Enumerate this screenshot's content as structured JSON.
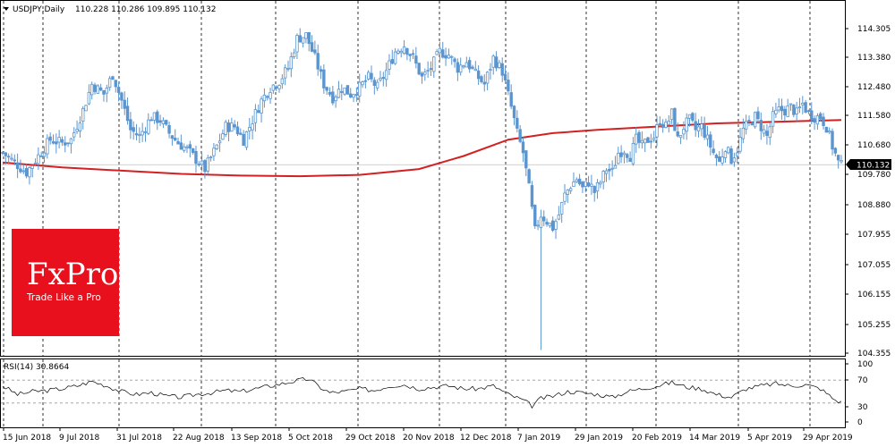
{
  "chart_data": [
    {
      "type": "candlestick",
      "symbol": "USDJPY,Daily",
      "ohlc_header": "110.228 110.286 109.895 110.132",
      "last_price": "110.132",
      "y_ticks": [
        "114.305",
        "113.380",
        "112.480",
        "111.580",
        "110.680",
        "109.780",
        "108.880",
        "107.955",
        "107.055",
        "106.155",
        "105.255",
        "104.355"
      ],
      "x_ticks": [
        "15 Jun 2018",
        "9 Jul 2018",
        "31 Jul 2018",
        "22 Aug 2018",
        "13 Sep 2018",
        "5 Oct 2018",
        "29 Oct 2018",
        "20 Nov 2018",
        "12 Dec 2018",
        "7 Jan 2019",
        "29 Jan 2019",
        "20 Feb 2019",
        "14 Mar 2019",
        "5 Apr 2019",
        "29 Apr 2019"
      ],
      "ylim": [
        104.1,
        114.5
      ],
      "grid": "vertical-dashed",
      "close_path": [
        [
          0,
          110.5
        ],
        [
          4,
          110.2
        ],
        [
          8,
          109.9
        ],
        [
          12,
          110.4
        ],
        [
          16,
          110.9
        ],
        [
          20,
          110.8
        ],
        [
          23,
          110.9
        ],
        [
          27,
          111.8
        ],
        [
          30,
          112.6
        ],
        [
          34,
          112.3
        ],
        [
          37,
          112.9
        ],
        [
          40,
          112.1
        ],
        [
          43,
          111.2
        ],
        [
          46,
          111.0
        ],
        [
          50,
          111.6
        ],
        [
          53,
          111.5
        ],
        [
          56,
          111.1
        ],
        [
          59,
          110.8
        ],
        [
          62,
          110.6
        ],
        [
          65,
          110.3
        ],
        [
          68,
          110.0
        ],
        [
          72,
          110.7
        ],
        [
          75,
          111.3
        ],
        [
          78,
          111.3
        ],
        [
          81,
          110.9
        ],
        [
          84,
          111.5
        ],
        [
          87,
          112.1
        ],
        [
          90,
          112.5
        ],
        [
          93,
          112.7
        ],
        [
          96,
          113.1
        ],
        [
          99,
          114.0
        ],
        [
          102,
          114.1
        ],
        [
          105,
          113.4
        ],
        [
          108,
          112.6
        ],
        [
          111,
          112.2
        ],
        [
          114,
          112.5
        ],
        [
          117,
          112.3
        ],
        [
          120,
          112.5
        ],
        [
          123,
          112.8
        ],
        [
          126,
          112.5
        ],
        [
          129,
          113.0
        ],
        [
          132,
          113.6
        ],
        [
          135,
          113.8
        ],
        [
          138,
          113.4
        ],
        [
          141,
          112.8
        ],
        [
          144,
          113.1
        ],
        [
          147,
          113.6
        ],
        [
          150,
          113.5
        ],
        [
          153,
          113.1
        ],
        [
          156,
          113.3
        ],
        [
          159,
          112.9
        ],
        [
          162,
          112.6
        ],
        [
          165,
          113.4
        ],
        [
          168,
          113.0
        ],
        [
          171,
          111.9
        ],
        [
          173,
          111.1
        ],
        [
          175,
          110.5
        ],
        [
          177,
          109.4
        ],
        [
          179,
          108.1
        ],
        [
          181,
          108.6
        ],
        [
          183,
          108.4
        ],
        [
          185,
          108.2
        ],
        [
          187,
          108.6
        ],
        [
          189,
          109.2
        ],
        [
          191,
          109.5
        ],
        [
          193,
          109.7
        ],
        [
          195,
          109.4
        ],
        [
          197,
          109.6
        ],
        [
          199,
          109.3
        ],
        [
          201,
          109.6
        ],
        [
          203,
          110.0
        ],
        [
          205,
          109.9
        ],
        [
          207,
          110.5
        ],
        [
          209,
          110.6
        ],
        [
          211,
          110.4
        ],
        [
          213,
          110.9
        ],
        [
          215,
          110.7
        ],
        [
          217,
          110.9
        ],
        [
          219,
          111.0
        ],
        [
          221,
          111.5
        ],
        [
          223,
          111.3
        ],
        [
          225,
          111.7
        ],
        [
          227,
          110.9
        ],
        [
          229,
          111.3
        ],
        [
          231,
          111.5
        ],
        [
          233,
          111.2
        ],
        [
          235,
          111.3
        ],
        [
          237,
          110.9
        ],
        [
          239,
          110.5
        ],
        [
          241,
          110.2
        ],
        [
          243,
          110.7
        ],
        [
          245,
          110.3
        ],
        [
          247,
          110.6
        ],
        [
          249,
          111.2
        ],
        [
          251,
          111.4
        ],
        [
          253,
          111.6
        ],
        [
          255,
          111.3
        ],
        [
          257,
          111.0
        ],
        [
          259,
          111.6
        ],
        [
          261,
          111.8
        ],
        [
          263,
          111.8
        ],
        [
          265,
          111.9
        ],
        [
          267,
          111.7
        ],
        [
          269,
          112.0
        ],
        [
          271,
          111.7
        ],
        [
          273,
          111.6
        ],
        [
          275,
          111.6
        ],
        [
          277,
          111.3
        ],
        [
          279,
          110.7
        ],
        [
          281,
          110.2
        ],
        [
          282,
          110.1
        ]
      ],
      "ma_path": [
        [
          0,
          110.2
        ],
        [
          20,
          110.05
        ],
        [
          40,
          109.95
        ],
        [
          60,
          109.85
        ],
        [
          80,
          109.8
        ],
        [
          100,
          109.78
        ],
        [
          120,
          109.82
        ],
        [
          140,
          110.0
        ],
        [
          155,
          110.4
        ],
        [
          170,
          110.9
        ],
        [
          185,
          111.1
        ],
        [
          200,
          111.2
        ],
        [
          220,
          111.3
        ],
        [
          240,
          111.4
        ],
        [
          260,
          111.45
        ],
        [
          282,
          111.5
        ]
      ],
      "ma_color": "#d32020",
      "candle_color": "#5b95cf"
    },
    {
      "type": "line",
      "indicator_label": "RSI(14) 30.8664",
      "y_ticks": [
        "100",
        "70",
        "30",
        "0"
      ],
      "ylim": [
        0,
        100
      ],
      "levels": [
        30,
        70
      ],
      "rsi_path": [
        [
          0,
          60
        ],
        [
          5,
          45
        ],
        [
          10,
          50
        ],
        [
          15,
          52
        ],
        [
          20,
          55
        ],
        [
          25,
          60
        ],
        [
          30,
          68
        ],
        [
          35,
          60
        ],
        [
          40,
          50
        ],
        [
          45,
          45
        ],
        [
          50,
          48
        ],
        [
          55,
          42
        ],
        [
          60,
          40
        ],
        [
          65,
          45
        ],
        [
          70,
          48
        ],
        [
          75,
          52
        ],
        [
          80,
          50
        ],
        [
          85,
          55
        ],
        [
          90,
          60
        ],
        [
          95,
          65
        ],
        [
          100,
          70
        ],
        [
          103,
          72
        ],
        [
          106,
          60
        ],
        [
          110,
          48
        ],
        [
          115,
          50
        ],
        [
          120,
          55
        ],
        [
          125,
          52
        ],
        [
          130,
          60
        ],
        [
          135,
          62
        ],
        [
          140,
          55
        ],
        [
          145,
          58
        ],
        [
          150,
          60
        ],
        [
          155,
          55
        ],
        [
          160,
          55
        ],
        [
          165,
          60
        ],
        [
          170,
          45
        ],
        [
          175,
          35
        ],
        [
          178,
          25
        ],
        [
          181,
          38
        ],
        [
          185,
          42
        ],
        [
          190,
          50
        ],
        [
          195,
          48
        ],
        [
          200,
          45
        ],
        [
          205,
          40
        ],
        [
          210,
          50
        ],
        [
          215,
          55
        ],
        [
          220,
          60
        ],
        [
          225,
          66
        ],
        [
          230,
          58
        ],
        [
          235,
          55
        ],
        [
          240,
          45
        ],
        [
          245,
          40
        ],
        [
          250,
          55
        ],
        [
          255,
          60
        ],
        [
          260,
          64
        ],
        [
          265,
          60
        ],
        [
          270,
          62
        ],
        [
          275,
          55
        ],
        [
          280,
          35
        ],
        [
          282,
          31
        ]
      ],
      "line_color": "#000000"
    }
  ],
  "logo": {
    "brand": "FxPro",
    "tagline": "Trade Like a Pro",
    "color": "#e8101c"
  }
}
